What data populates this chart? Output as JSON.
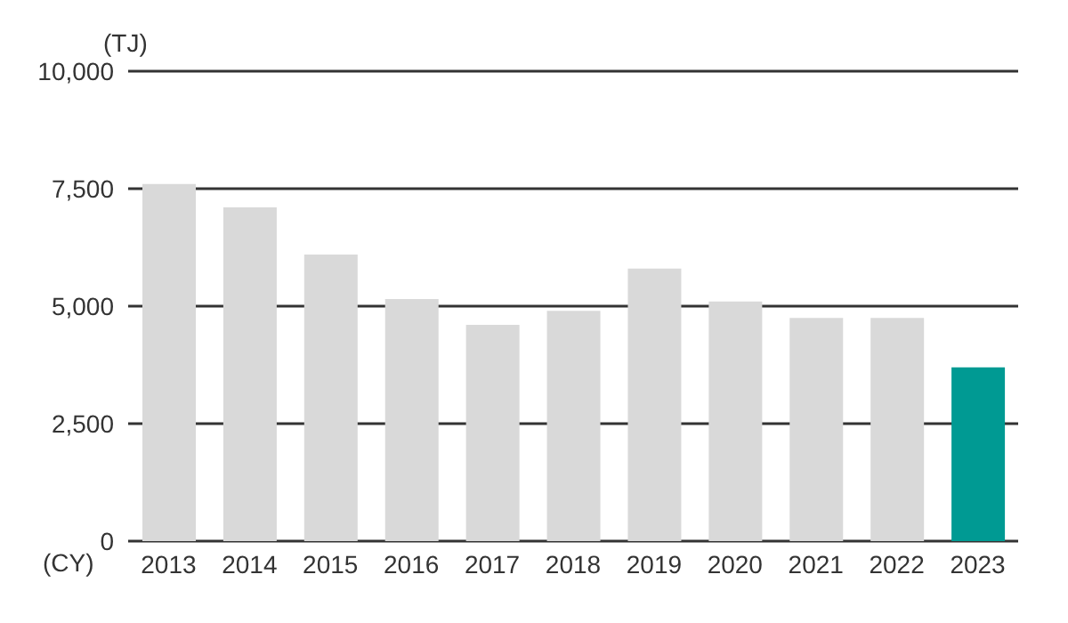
{
  "chart_data": {
    "type": "bar",
    "ylabel": "(TJ)",
    "xlabel": "(CY)",
    "categories": [
      "2013",
      "2014",
      "2015",
      "2016",
      "2017",
      "2018",
      "2019",
      "2020",
      "2021",
      "2022",
      "2023"
    ],
    "values": [
      7600,
      7100,
      6100,
      5150,
      4600,
      4900,
      5800,
      5100,
      4750,
      4750,
      3700
    ],
    "colors": [
      "#d9d9d9",
      "#d9d9d9",
      "#d9d9d9",
      "#d9d9d9",
      "#d9d9d9",
      "#d9d9d9",
      "#d9d9d9",
      "#d9d9d9",
      "#d9d9d9",
      "#d9d9d9",
      "#009a93"
    ],
    "ylim": [
      0,
      10000
    ],
    "yticks": [
      0,
      {
        "value": 2500,
        "label": "2,500"
      },
      {
        "value": 5000,
        "label": "5,000"
      },
      {
        "value": 7500,
        "label": "7,500"
      },
      {
        "value": 10000,
        "label": "10,000"
      }
    ],
    "grid": "y",
    "legend": false
  }
}
